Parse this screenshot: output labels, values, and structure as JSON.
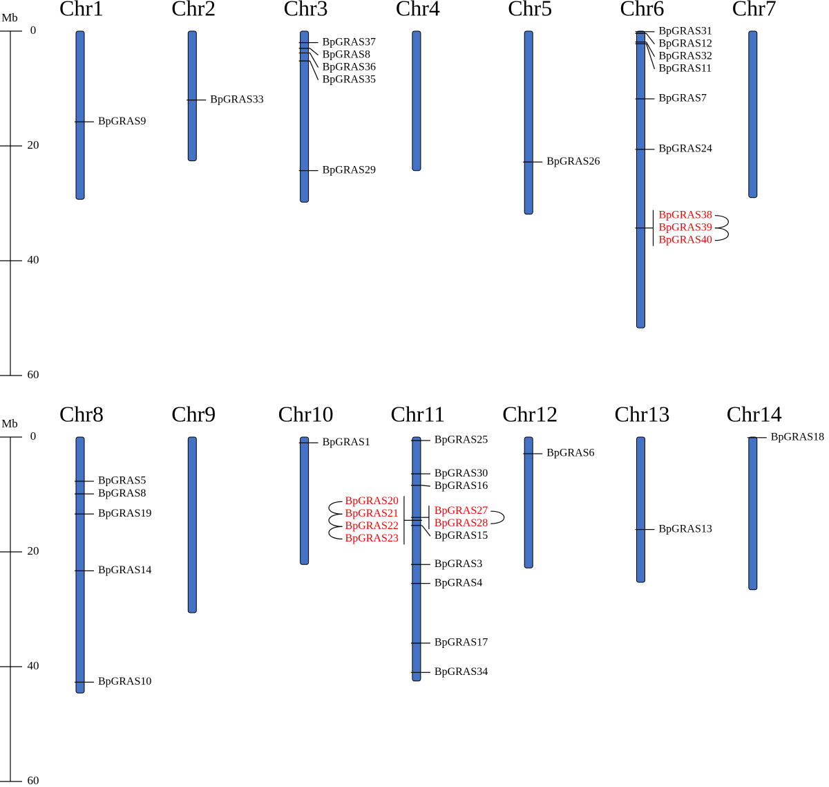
{
  "panels": [
    {
      "scale_label": "Mb",
      "ylim": [
        0,
        60
      ],
      "yticks": [
        0,
        20,
        40,
        60
      ],
      "chromosomes": [
        {
          "name": "Chr1",
          "length": 29.3,
          "genes": [
            {
              "name": "BpGRAS9",
              "position": 15.8
            }
          ]
        },
        {
          "name": "Chr2",
          "length": 22.6,
          "genes": [
            {
              "name": "BpGRAS33",
              "position": 12.0
            }
          ]
        },
        {
          "name": "Chr3",
          "length": 29.8,
          "genes": [
            {
              "name": "BpGRAS37",
              "position": 2.0
            },
            {
              "name": "BpGRAS8",
              "position": 3.0
            },
            {
              "name": "BpGRAS36",
              "position": 3.8
            },
            {
              "name": "BpGRAS35",
              "position": 5.2
            },
            {
              "name": "BpGRAS29",
              "position": 24.3
            }
          ]
        },
        {
          "name": "Chr4",
          "length": 24.3,
          "genes": []
        },
        {
          "name": "Chr5",
          "length": 31.9,
          "genes": [
            {
              "name": "BpGRAS26",
              "position": 22.8
            }
          ]
        },
        {
          "name": "Chr6",
          "length": 51.7,
          "genes": [
            {
              "name": "BpGRAS31",
              "position": 0.1
            },
            {
              "name": "BpGRAS12",
              "position": 0.4
            },
            {
              "name": "BpGRAS32",
              "position": 1.9
            },
            {
              "name": "BpGRAS11",
              "position": 2.2
            },
            {
              "name": "BpGRAS7",
              "position": 11.8
            },
            {
              "name": "BpGRAS24",
              "position": 20.6
            },
            {
              "names": [
                "BpGRAS38",
                "BpGRAS39",
                "BpGRAS40"
              ],
              "position": 34.3,
              "color": "#ff0000",
              "label_side": "right"
            }
          ]
        },
        {
          "name": "Chr7",
          "length": 29.0,
          "genes": []
        }
      ]
    },
    {
      "scale_label": "Mb",
      "ylim": [
        0,
        60
      ],
      "yticks": [
        0,
        20,
        40,
        60
      ],
      "chromosomes": [
        {
          "name": "Chr8",
          "length": 44.6,
          "genes": [
            {
              "name": "BpGRAS5",
              "position": 7.7
            },
            {
              "name": "BpGRAS8",
              "position": 9.9
            },
            {
              "name": "BpGRAS19",
              "position": 13.4
            },
            {
              "name": "BpGRAS14",
              "position": 23.3
            },
            {
              "name": "BpGRAS10",
              "position": 42.7
            }
          ]
        },
        {
          "name": "Chr9",
          "length": 30.6,
          "genes": []
        },
        {
          "name": "Chr10",
          "length": 22.2,
          "genes": [
            {
              "name": "BpGRAS1",
              "position": 1.0
            }
          ]
        },
        {
          "name": "Chr11",
          "length": 42.5,
          "genes": [
            {
              "name": "BpGRAS25",
              "position": 0.6
            },
            {
              "name": "BpGRAS30",
              "position": 6.4
            },
            {
              "name": "BpGRAS16",
              "position": 8.4
            },
            {
              "names": [
                "BpGRAS27",
                "BpGRAS28"
              ],
              "position": 14.0,
              "color": "#ff0000",
              "label_side": "right"
            },
            {
              "names": [
                "BpGRAS20",
                "BpGRAS21",
                "BpGRAS22",
                "BpGRAS23"
              ],
              "position": 14.5,
              "color": "#ff0000",
              "label_side": "left"
            },
            {
              "name": "BpGRAS15",
              "position": 15.4
            },
            {
              "name": "BpGRAS3",
              "position": 22.2
            },
            {
              "name": "BpGRAS4",
              "position": 25.5
            },
            {
              "name": "BpGRAS17",
              "position": 35.9
            },
            {
              "name": "BpGRAS34",
              "position": 41.0
            }
          ]
        },
        {
          "name": "Chr12",
          "length": 22.8,
          "genes": [
            {
              "name": "BpGRAS6",
              "position": 2.9
            }
          ]
        },
        {
          "name": "Chr13",
          "length": 25.3,
          "genes": [
            {
              "name": "BpGRAS13",
              "position": 16.1
            }
          ]
        },
        {
          "name": "Chr14",
          "length": 26.6,
          "genes": [
            {
              "name": "BpGRAS18",
              "position": 0.1
            }
          ]
        }
      ]
    }
  ],
  "chromosome_color": "#4472c4"
}
